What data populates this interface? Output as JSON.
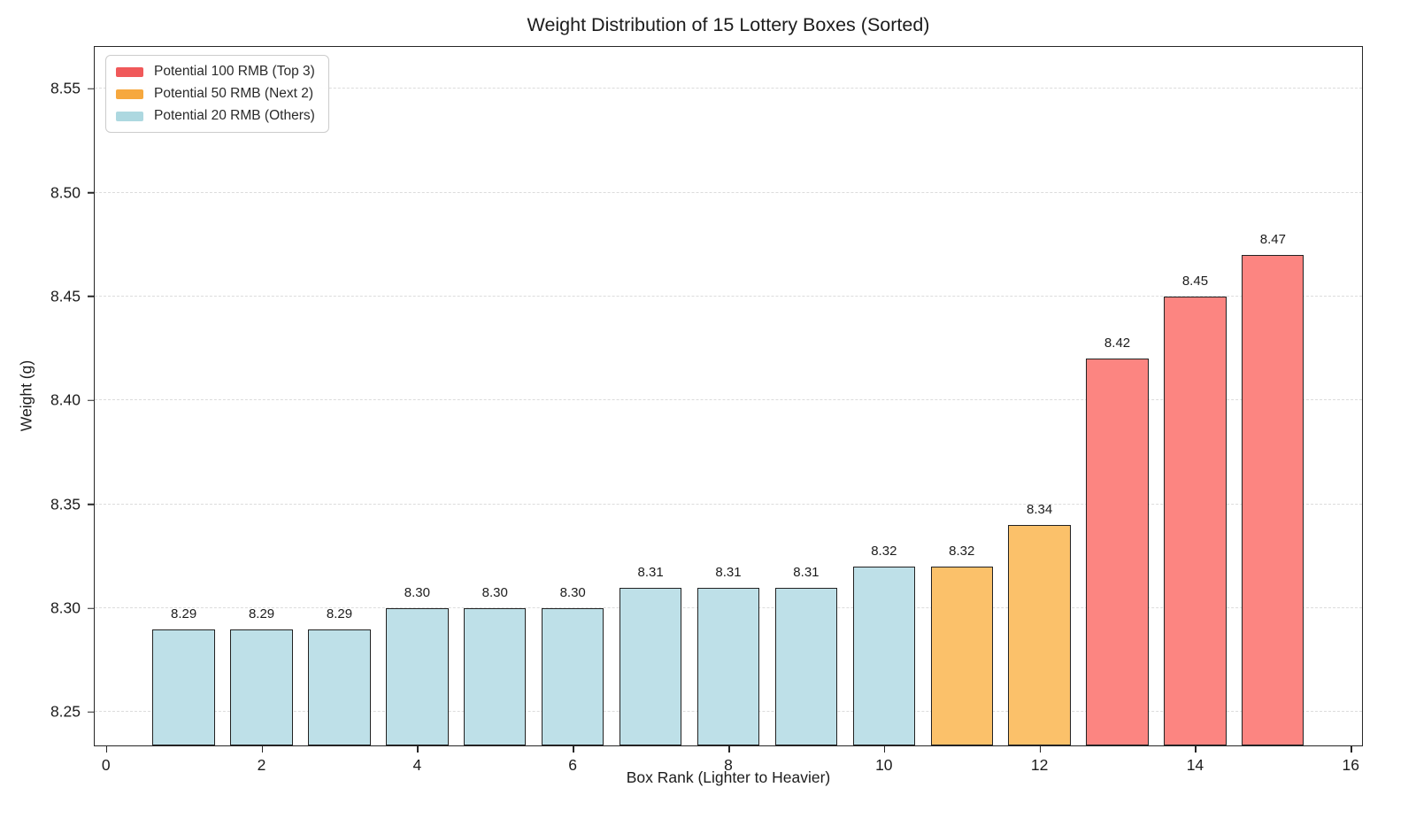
{
  "chart_data": {
    "type": "bar",
    "title": "Weight Distribution of 15 Lottery Boxes (Sorted)",
    "xlabel": "Box Rank (Lighter to Heavier)",
    "ylabel": "Weight (g)",
    "x": [
      1,
      2,
      3,
      4,
      5,
      6,
      7,
      8,
      9,
      10,
      11,
      12,
      13,
      14,
      15
    ],
    "values": [
      8.29,
      8.29,
      8.29,
      8.3,
      8.3,
      8.3,
      8.31,
      8.31,
      8.31,
      8.32,
      8.32,
      8.34,
      8.42,
      8.45,
      8.47
    ],
    "bar_labels": [
      "8.29",
      "8.29",
      "8.29",
      "8.30",
      "8.30",
      "8.30",
      "8.31",
      "8.31",
      "8.31",
      "8.32",
      "8.32",
      "8.34",
      "8.42",
      "8.45",
      "8.47"
    ],
    "groups": [
      "others",
      "others",
      "others",
      "others",
      "others",
      "others",
      "others",
      "others",
      "others",
      "others",
      "next2",
      "next2",
      "top3",
      "top3",
      "top3"
    ],
    "bar_width": 0.8,
    "bar_edge_color": "#222222",
    "xlim": [
      -0.145,
      16.145
    ],
    "ylim": [
      8.234,
      8.5701
    ],
    "xtick_values": [
      0,
      2,
      4,
      6,
      8,
      10,
      12,
      14,
      16
    ],
    "xtick_labels": [
      "0",
      "2",
      "4",
      "6",
      "8",
      "10",
      "12",
      "14",
      "16"
    ],
    "ytick_values": [
      8.25,
      8.3,
      8.35,
      8.4,
      8.45,
      8.5,
      8.55
    ],
    "ytick_labels": [
      "8.25",
      "8.30",
      "8.35",
      "8.40",
      "8.45",
      "8.50",
      "8.55"
    ],
    "grid": "horizontal-dashed",
    "grid_color": "#dcdcdc",
    "colors": {
      "top3": {
        "bar": "#fc8581",
        "legend": "#f0595a"
      },
      "next2": {
        "bar": "#fbc16a",
        "legend": "#f6a83e"
      },
      "others": {
        "bar": "#bee0e8",
        "legend": "#add8e0"
      }
    },
    "legend": {
      "position": "upper-left",
      "items": [
        {
          "key": "top3",
          "label": "Potential 100 RMB (Top 3)"
        },
        {
          "key": "next2",
          "label": "Potential 50 RMB (Next 2)"
        },
        {
          "key": "others",
          "label": "Potential 20 RMB (Others)"
        }
      ]
    }
  }
}
